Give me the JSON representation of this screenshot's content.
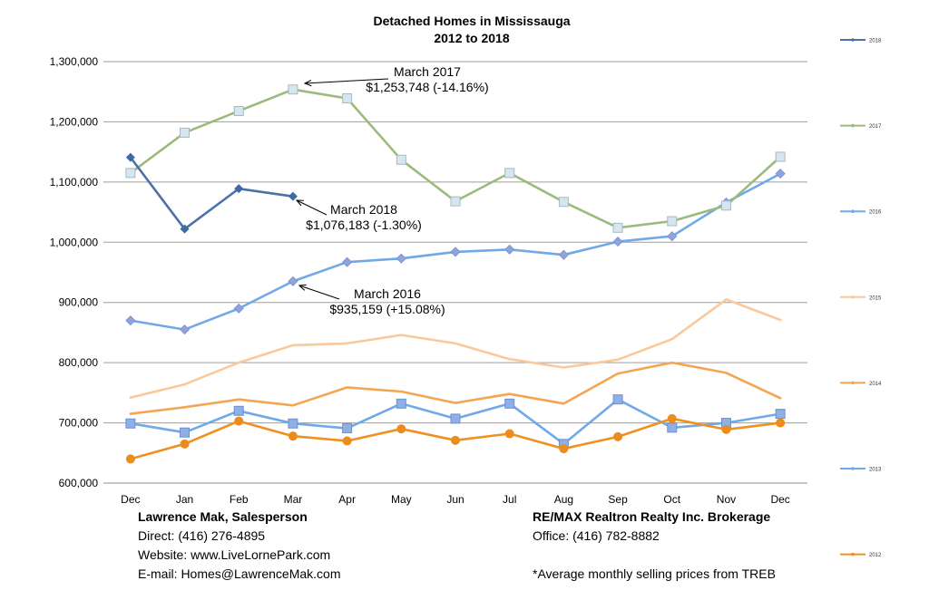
{
  "chart_data": {
    "type": "line",
    "title": "Detached Homes in Mississauga",
    "subtitle": "2012 to 2018",
    "categories": [
      "Dec",
      "Jan",
      "Feb",
      "Mar",
      "Apr",
      "May",
      "Jun",
      "Jul",
      "Aug",
      "Sep",
      "Oct",
      "Nov",
      "Dec"
    ],
    "ylim": [
      600000,
      1300000
    ],
    "yticks": [
      600000,
      700000,
      800000,
      900000,
      1000000,
      1100000,
      1200000,
      1300000
    ],
    "ytick_labels": [
      "600,000",
      "700,000",
      "800,000",
      "900,000",
      "1,000,000",
      "1,100,000",
      "1,200,000",
      "1,300,000"
    ],
    "grid": true,
    "legend_position": "right",
    "series": [
      {
        "name": "2018",
        "color": "#4a72a8",
        "marker": "diamond",
        "values": [
          1141000,
          1022000,
          1089000,
          1076183,
          null,
          null,
          null,
          null,
          null,
          null,
          null,
          null,
          null
        ]
      },
      {
        "name": "2017",
        "color": "#9bbb7d",
        "marker": "square-light",
        "values": [
          1115000,
          1182000,
          1218000,
          1253748,
          1239000,
          1137000,
          1068000,
          1115000,
          1067000,
          1024000,
          1035000,
          1061000,
          1142000
        ]
      },
      {
        "name": "2016",
        "color": "#6fa9e8",
        "marker": "diamond-lilac",
        "values": [
          870000,
          855000,
          890000,
          935159,
          967000,
          973000,
          984000,
          988000,
          979000,
          1001000,
          1010000,
          1066000,
          1114000
        ]
      },
      {
        "name": "2015",
        "color": "#f9c99a",
        "marker": "none",
        "values": [
          742000,
          764000,
          800000,
          829000,
          832000,
          846000,
          832000,
          806000,
          792000,
          805000,
          839000,
          905000,
          871000
        ]
      },
      {
        "name": "2014",
        "color": "#f4a552",
        "marker": "none",
        "values": [
          715000,
          726000,
          739000,
          729000,
          759000,
          752000,
          733000,
          748000,
          732000,
          782000,
          800000,
          783000,
          741000
        ]
      },
      {
        "name": "2013",
        "color": "#6fa9e8",
        "marker": "square-blue",
        "values": [
          699000,
          684000,
          720000,
          699000,
          691000,
          732000,
          707000,
          732000,
          665000,
          739000,
          692000,
          700000,
          715000
        ]
      },
      {
        "name": "2012",
        "color": "#f0901e",
        "marker": "circle",
        "values": [
          640000,
          665000,
          703000,
          678000,
          670000,
          690000,
          671000,
          682000,
          657000,
          677000,
          707000,
          689000,
          700000
        ]
      }
    ],
    "annotations": [
      {
        "line1": "March 2017",
        "line2": "$1,253,748 (-14.16%)",
        "series": "2017",
        "index": 3
      },
      {
        "line1": "March 2018",
        "line2": "$1,076,183 (-1.30%)",
        "series": "2018",
        "index": 3
      },
      {
        "line1": "March 2016",
        "line2": "$935,159 (+15.08%)",
        "series": "2016",
        "index": 3
      }
    ]
  },
  "footer": {
    "left": {
      "name": "Lawrence Mak, Salesperson",
      "direct": "Direct:  (416) 276-4895",
      "website": "Website:  www.LiveLornePark.com",
      "email": "E-mail:  Homes@LawrenceMak.com"
    },
    "right": {
      "name": "RE/MAX Realtron Realty Inc. Brokerage",
      "office": "Office: (416) 782-8882",
      "note": "*Average monthly selling prices from TREB"
    }
  }
}
